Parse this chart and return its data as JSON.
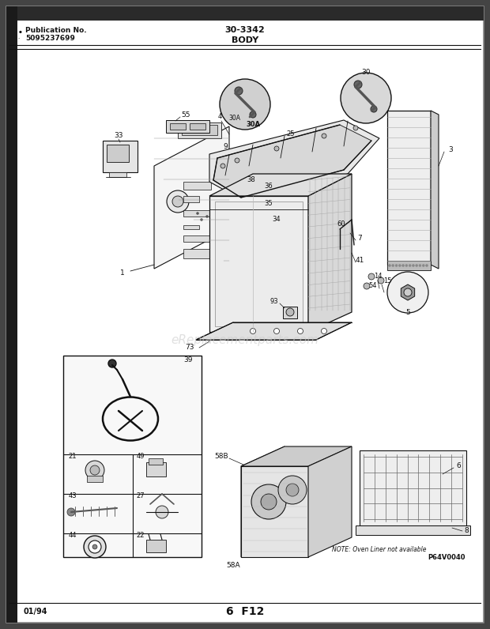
{
  "title": "30-3342",
  "subtitle": "BODY",
  "pub_no_label": "Publication No.",
  "pub_no": "5095237699",
  "date": "01/94",
  "page": "6",
  "page_code": "F12",
  "watermark": "eReplacementparts.com",
  "note": "NOTE: Oven Liner not available",
  "part_code": "P64V0040",
  "bg_color": "#ffffff",
  "outer_bg": "#444444",
  "line_color": "#111111",
  "text_color": "#111111",
  "gray_light": "#e8e8e8",
  "gray_mid": "#cccccc",
  "gray_dark": "#999999"
}
